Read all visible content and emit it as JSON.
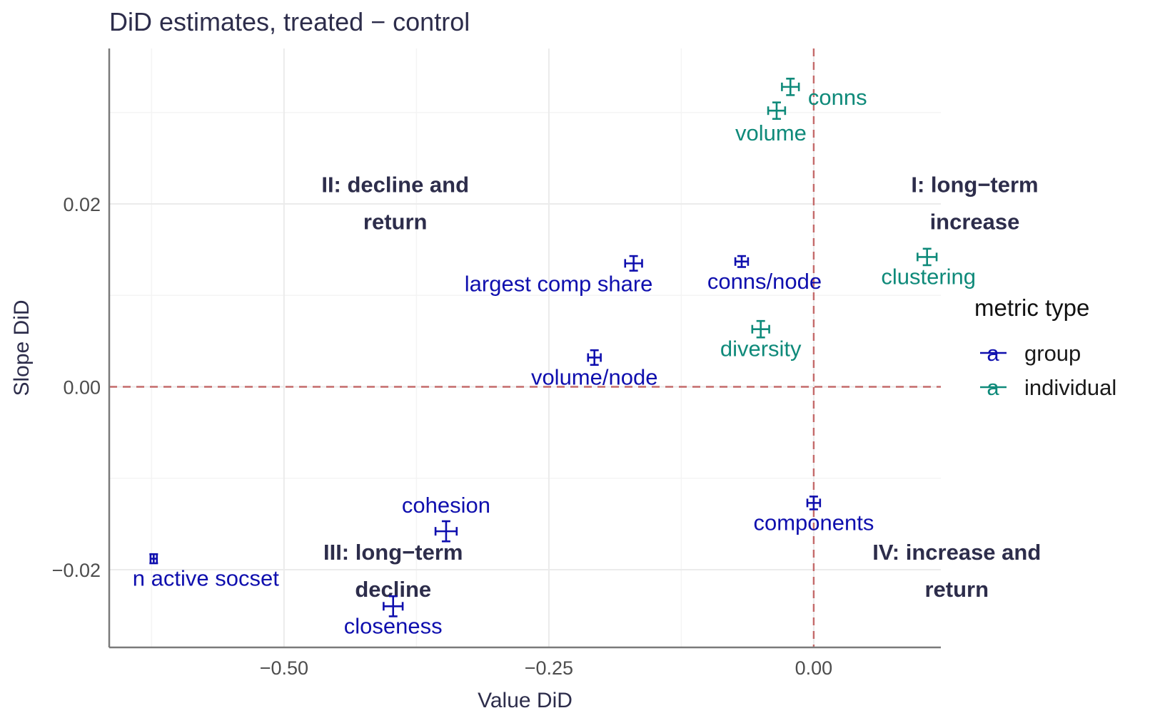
{
  "chart_data": {
    "type": "scatter",
    "title": "DiD estimates, treated − control",
    "xlabel": "Value DiD",
    "ylabel": "Slope DiD",
    "xlim": [
      -0.665,
      0.12
    ],
    "ylim": [
      -0.0285,
      0.037
    ],
    "x_ticks": [
      -0.5,
      -0.25,
      0.0
    ],
    "x_tick_labels": [
      "−0.50",
      "−0.25",
      "0.00"
    ],
    "y_ticks": [
      -0.02,
      0.0,
      0.02
    ],
    "y_tick_labels": [
      "−0.02",
      "0.00",
      "0.02"
    ],
    "reference_lines": {
      "x": 0,
      "y": 0
    },
    "series": [
      {
        "name": "group",
        "color": "#0f0fae"
      },
      {
        "name": "individual",
        "color": "#0f8a7a"
      }
    ],
    "points": [
      {
        "label": "conns",
        "group": "individual",
        "x": -0.022,
        "y": 0.0328,
        "xerr": 0.008,
        "yerr": 0.0009
      },
      {
        "label": "volume",
        "group": "individual",
        "x": -0.035,
        "y": 0.0302,
        "xerr": 0.008,
        "yerr": 0.0009
      },
      {
        "label": "clustering",
        "group": "individual",
        "x": 0.107,
        "y": 0.0142,
        "xerr": 0.009,
        "yerr": 0.0009
      },
      {
        "label": "diversity",
        "group": "individual",
        "x": -0.05,
        "y": 0.0063,
        "xerr": 0.008,
        "yerr": 0.0009
      },
      {
        "label": "largest comp share",
        "group": "group",
        "x": -0.17,
        "y": 0.0135,
        "xerr": 0.008,
        "yerr": 0.0008
      },
      {
        "label": "conns/node",
        "group": "group",
        "x": -0.068,
        "y": 0.0137,
        "xerr": 0.006,
        "yerr": 0.0006
      },
      {
        "label": "volume/node",
        "group": "group",
        "x": -0.207,
        "y": 0.0032,
        "xerr": 0.006,
        "yerr": 0.0008
      },
      {
        "label": "components",
        "group": "group",
        "x": 0.0,
        "y": -0.0127,
        "xerr": 0.006,
        "yerr": 0.0007
      },
      {
        "label": "cohesion",
        "group": "group",
        "x": -0.347,
        "y": -0.0158,
        "xerr": 0.01,
        "yerr": 0.0011
      },
      {
        "label": "n active socset",
        "group": "group",
        "x": -0.623,
        "y": -0.0188,
        "xerr": 0.003,
        "yerr": 0.0005
      },
      {
        "label": "closeness",
        "group": "group",
        "x": -0.397,
        "y": -0.024,
        "xerr": 0.009,
        "yerr": 0.0011
      }
    ],
    "quadrant_labels": [
      {
        "line1": "I: long−term",
        "line2": "increase",
        "x": 0.152,
        "y": 0.018
      },
      {
        "line1": "II: decline and",
        "line2": "return",
        "x": -0.395,
        "y": 0.018
      },
      {
        "line1": "III: long−term",
        "line2": "decline",
        "x": -0.397,
        "y": -0.0222
      },
      {
        "line1": "IV: increase and",
        "line2": "return",
        "x": 0.135,
        "y": -0.0222
      }
    ],
    "legend": {
      "title": "metric type",
      "position": "right",
      "entries": [
        "group",
        "individual"
      ],
      "key_glyph": "a"
    }
  }
}
